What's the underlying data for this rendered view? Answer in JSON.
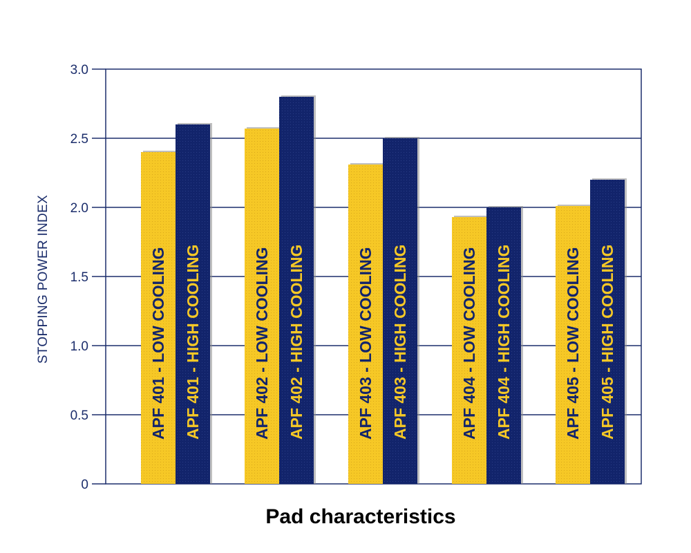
{
  "chart_data": {
    "type": "bar",
    "title": "",
    "xlabel": "Pad characteristics",
    "ylabel": "STOPPING POWER INDEX",
    "ylim": [
      0,
      3.0
    ],
    "yticks": [
      "0",
      "0.5",
      "1.0",
      "1.5",
      "2.0",
      "2.5",
      "3.0"
    ],
    "ytick_values": [
      0,
      0.5,
      1.0,
      1.5,
      2.0,
      2.5,
      3.0
    ],
    "grid": true,
    "colors": {
      "low": "#f6c826",
      "high": "#12246b",
      "grid": "#1b2d6b",
      "plot_bg": "#ffffff"
    },
    "groups": [
      {
        "bars": [
          {
            "label": "APF 401 - LOW COOLING",
            "value": 2.4,
            "series": "low"
          },
          {
            "label": "APF 401 - HIGH COOLING",
            "value": 2.6,
            "series": "high"
          }
        ]
      },
      {
        "bars": [
          {
            "label": "APF 402 - LOW COOLING",
            "value": 2.57,
            "series": "low"
          },
          {
            "label": "APF 402 - HIGH COOLING",
            "value": 2.8,
            "series": "high"
          }
        ]
      },
      {
        "bars": [
          {
            "label": "APF 403 - LOW COOLING",
            "value": 2.31,
            "series": "low"
          },
          {
            "label": "APF 403 - HIGH COOLING",
            "value": 2.5,
            "series": "high"
          }
        ]
      },
      {
        "bars": [
          {
            "label": "APF 404 - LOW COOLING",
            "value": 1.93,
            "series": "low"
          },
          {
            "label": "APF 404 - HIGH COOLING",
            "value": 2.0,
            "series": "high"
          }
        ]
      },
      {
        "bars": [
          {
            "label": "APF 405 - LOW COOLING",
            "value": 2.01,
            "series": "low"
          },
          {
            "label": "APF 405 - HIGH COOLING",
            "value": 2.2,
            "series": "high"
          }
        ]
      }
    ]
  }
}
